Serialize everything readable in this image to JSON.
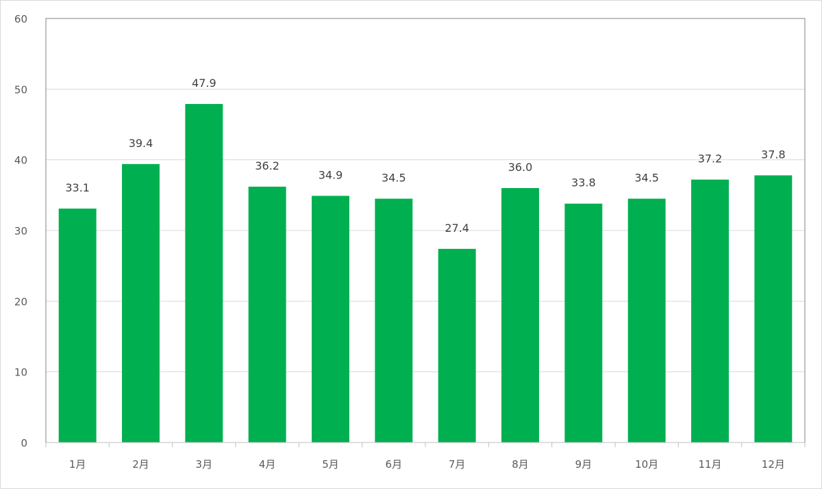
{
  "chart_data": {
    "type": "bar",
    "categories": [
      "1月",
      "2月",
      "3月",
      "4月",
      "5月",
      "6月",
      "7月",
      "8月",
      "9月",
      "10月",
      "11月",
      "12月"
    ],
    "values": [
      33.1,
      39.4,
      47.9,
      36.2,
      34.9,
      34.5,
      27.4,
      36.0,
      33.8,
      34.5,
      37.2,
      37.8
    ],
    "data_labels": [
      "33.1",
      "39.4",
      "47.9",
      "36.2",
      "34.9",
      "34.5",
      "27.4",
      "36.0",
      "33.8",
      "34.5",
      "37.2",
      "37.8"
    ],
    "y_ticks": [
      "0",
      "10",
      "20",
      "30",
      "40",
      "50",
      "60"
    ],
    "y_tick_values": [
      0,
      10,
      20,
      30,
      40,
      50,
      60
    ],
    "ylim": [
      0,
      60
    ],
    "title": "",
    "xlabel": "",
    "ylabel": "",
    "grid": true,
    "legend": "none",
    "colors": {
      "bar": "#00b050",
      "grid": "#d9d9d9",
      "axis": "#bfbfbf",
      "plot_border": "#808080"
    }
  }
}
